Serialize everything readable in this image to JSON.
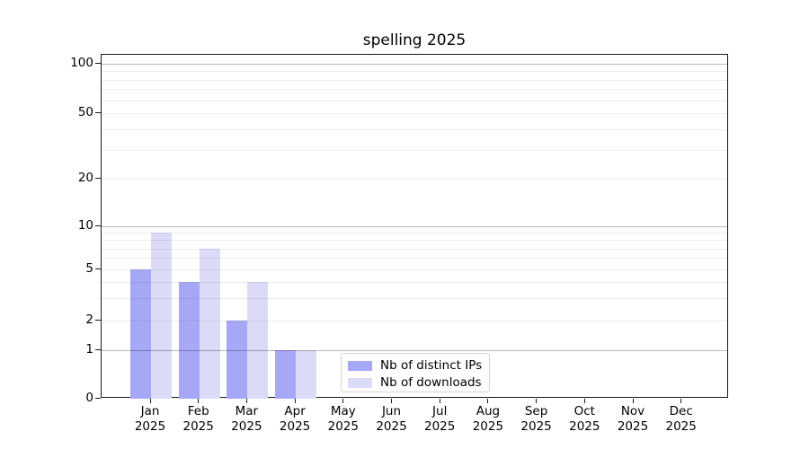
{
  "chart_data": {
    "type": "bar",
    "title": "spelling 2025",
    "categories": [
      "Jan",
      "Feb",
      "Mar",
      "Apr",
      "May",
      "Jun",
      "Jul",
      "Aug",
      "Sep",
      "Oct",
      "Nov",
      "Dec"
    ],
    "category_year": "2025",
    "series": [
      {
        "name": "Nb of distinct IPs",
        "color": "#a7a7f7",
        "values": [
          5,
          4,
          2,
          1,
          0,
          0,
          0,
          0,
          0,
          0,
          0,
          0
        ]
      },
      {
        "name": "Nb of downloads",
        "color": "#dbdbf8",
        "values": [
          9,
          7,
          4,
          1,
          0,
          0,
          0,
          0,
          0,
          0,
          0,
          0
        ]
      }
    ],
    "yscale": "symlog",
    "ylim": [
      0,
      114
    ],
    "yticks": [
      0,
      1,
      2,
      5,
      10,
      20,
      50,
      100
    ],
    "major_grid_values": [
      1,
      10,
      100
    ],
    "minor_grid_values": [
      2,
      3,
      4,
      5,
      6,
      7,
      8,
      9,
      20,
      30,
      40,
      50,
      60,
      70,
      80,
      90
    ],
    "grid": "horizontal",
    "legend_position": "lower center"
  },
  "colors": {
    "bar_distinct_ips": "#a7a7f7",
    "bar_downloads": "#dbdbf8",
    "major_grid": "#b8b8b8",
    "minor_grid": "#ececec",
    "spine": "#1a1a1a",
    "text": "#000000",
    "legend_border": "#d2d2d2",
    "background": "#ffffff"
  }
}
